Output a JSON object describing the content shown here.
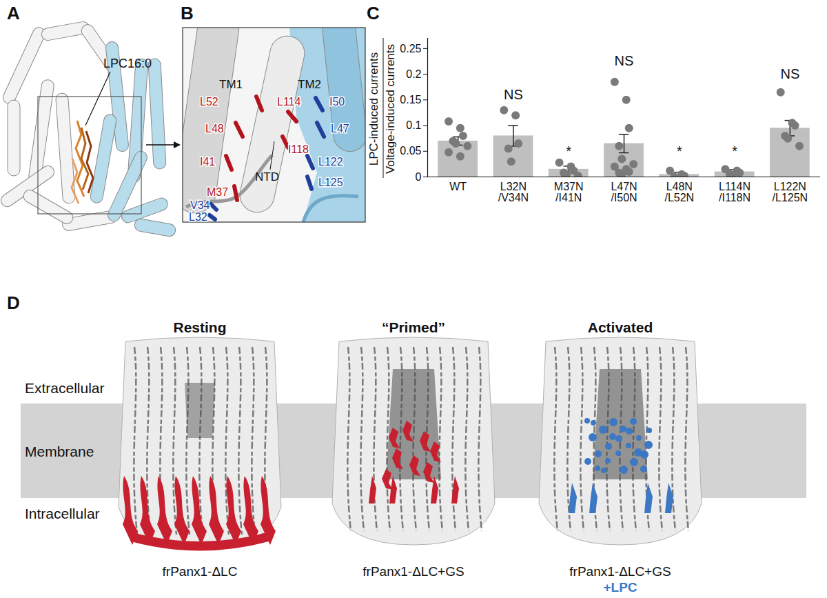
{
  "panel_labels": {
    "a": "A",
    "b": "B",
    "c": "C",
    "d": "D"
  },
  "panel_a": {
    "ligand_label": "LPC16:0"
  },
  "panel_b": {
    "helix_labels": [
      "TM1",
      "TM2"
    ],
    "domain_label": "NTD",
    "residues": [
      {
        "name": "L52",
        "color": "#b3141c"
      },
      {
        "name": "L114",
        "color": "#b3141c"
      },
      {
        "name": "I50",
        "color": "#1f3f9a"
      },
      {
        "name": "L48",
        "color": "#b3141c"
      },
      {
        "name": "L47",
        "color": "#1f3f9a"
      },
      {
        "name": "I41",
        "color": "#b3141c"
      },
      {
        "name": "I118",
        "color": "#b3141c"
      },
      {
        "name": "L122",
        "color": "#1f3f9a"
      },
      {
        "name": "M37",
        "color": "#b3141c"
      },
      {
        "name": "L125",
        "color": "#1f3f9a"
      },
      {
        "name": "V34",
        "color": "#1f3f9a"
      },
      {
        "name": "L32",
        "color": "#1f3f9a"
      }
    ]
  },
  "chart_data": {
    "type": "bar",
    "ylabel_numerator": "LPC-induced currents",
    "ylabel_denominator": "Voltage-induced currents",
    "categories": [
      "WT",
      "L32N/V34N",
      "M37N/I41N",
      "L47N/I50N",
      "L48N/L52N",
      "L114N/I118N",
      "L122N/L125N"
    ],
    "values": [
      0.07,
      0.08,
      0.015,
      0.065,
      0.005,
      0.01,
      0.095
    ],
    "errors": [
      0.008,
      0.02,
      0.006,
      0.018,
      0.004,
      0.004,
      0.015
    ],
    "points": [
      [
        0.108,
        0.095,
        0.08,
        0.07,
        0.065,
        0.06,
        0.048,
        0.04
      ],
      [
        0.13,
        0.12,
        0.065,
        0.055,
        0.03
      ],
      [
        0.028,
        0.02,
        0.012,
        0.008,
        0.005,
        0.002
      ],
      [
        0.185,
        0.15,
        0.095,
        0.06,
        0.035,
        0.025,
        0.02,
        0.015,
        0.01,
        0.008,
        0.005
      ],
      [
        0.012,
        0.005,
        0.002,
        0.0
      ],
      [
        0.015,
        0.012,
        0.008,
        0.005,
        0.003
      ],
      [
        0.165,
        0.105,
        0.1,
        0.08,
        0.075,
        0.06
      ]
    ],
    "color": "#bfbfbf",
    "point_color": "#7a7a7a",
    "ylim": [
      0,
      0.27
    ],
    "yticks": [
      0,
      0.05,
      0.1,
      0.15,
      0.2,
      0.25
    ],
    "annotations": [
      {
        "category": "L32N/V34N",
        "label": "NS",
        "y": 0.16
      },
      {
        "category": "M37N/I41N",
        "label": "*",
        "y": 0.05
      },
      {
        "category": "L47N/I50N",
        "label": "NS",
        "y": 0.225
      },
      {
        "category": "L48N/L52N",
        "label": "*",
        "y": 0.05
      },
      {
        "category": "L114N/I118N",
        "label": "*",
        "y": 0.05
      },
      {
        "category": "L122N/L125N",
        "label": "NS",
        "y": 0.2
      }
    ]
  },
  "panel_d": {
    "regions": [
      "Extracellular",
      "Membrane",
      "Intracellular"
    ],
    "states": [
      {
        "title": "Resting",
        "caption": "frPanx1-ΔLC",
        "highlight_color": "#c8202f"
      },
      {
        "title": "“Primed”",
        "caption": "frPanx1-ΔLC+GS",
        "highlight_color": "#c8202f"
      },
      {
        "title": "Activated",
        "caption": "frPanx1-ΔLC+GS",
        "caption_extra": "+LPC",
        "highlight_color": "#3c78c3"
      }
    ]
  }
}
